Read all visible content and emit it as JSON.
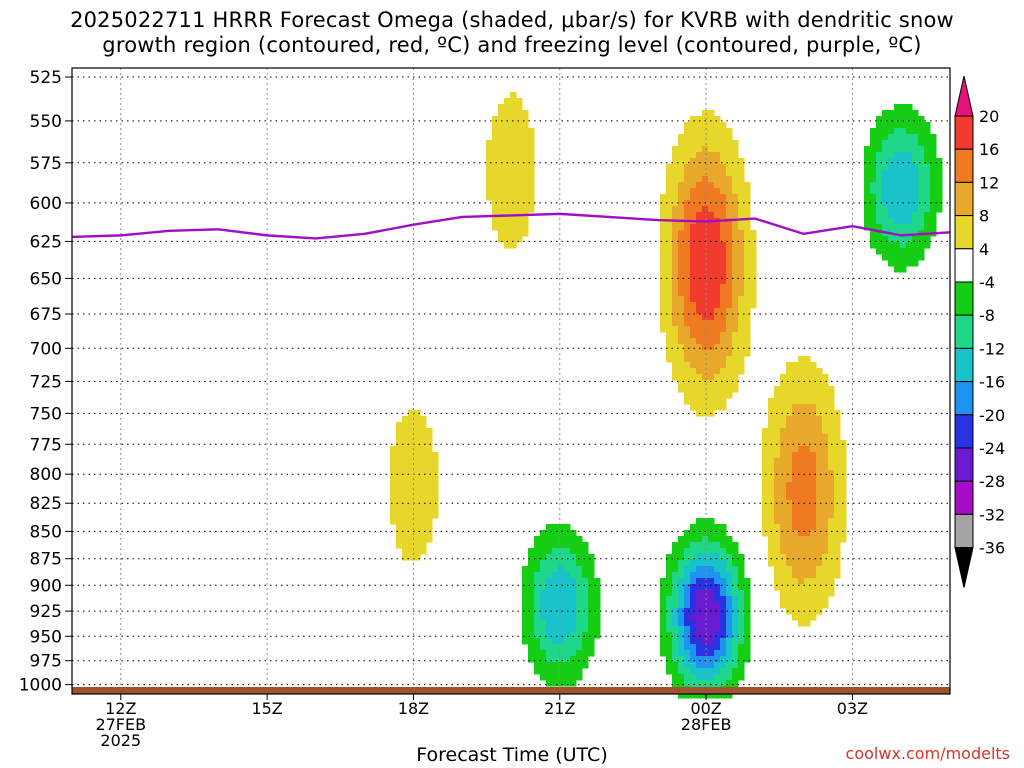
{
  "title": "2025022711 HRRR Forecast Omega (shaded, μbar/s) for KVRB with dendritic snow\ngrowth region (contoured, red, ºC) and freezing level (contoured, purple, ºC)",
  "credit": "coolwx.com/modelts",
  "chart_data": {
    "type": "heatmap",
    "title": "2025022711 HRRR Forecast Omega (shaded, μbar/s) for KVRB with dendritic snow growth region (contoured, red, ºC) and freezing level (contoured, purple, ºC)",
    "xlabel": "Forecast Time (UTC)",
    "ylabel": "",
    "x_ticks": [
      {
        "hour": 0,
        "lines": [
          "12Z",
          "27FEB",
          "2025"
        ]
      },
      {
        "hour": 3,
        "lines": [
          "15Z"
        ]
      },
      {
        "hour": 6,
        "lines": [
          "18Z"
        ]
      },
      {
        "hour": 9,
        "lines": [
          "21Z"
        ]
      },
      {
        "hour": 12,
        "lines": [
          "00Z",
          "28FEB"
        ]
      },
      {
        "hour": 15,
        "lines": [
          "03Z"
        ]
      }
    ],
    "xlim": [
      -1,
      17
    ],
    "y_ticks": [
      525,
      550,
      575,
      600,
      625,
      650,
      675,
      700,
      725,
      750,
      775,
      800,
      825,
      850,
      875,
      900,
      925,
      950,
      975,
      1000
    ],
    "ylim": [
      520,
      1010
    ],
    "y_scale": "log-pressure (inverted)",
    "grid": true,
    "colorbar": {
      "labels": [
        "20",
        "16",
        "12",
        "8",
        "4",
        "-4",
        "-8",
        "-12",
        "-16",
        "-20",
        "-24",
        "-28",
        "-32",
        "-36"
      ],
      "levels": [
        {
          "min": 20,
          "color": "#e8127c"
        },
        {
          "min": 16,
          "max": 20,
          "color": "#f23a2e"
        },
        {
          "min": 12,
          "max": 16,
          "color": "#ef7a22"
        },
        {
          "min": 8,
          "max": 12,
          "color": "#e7a82c"
        },
        {
          "min": 4,
          "max": 8,
          "color": "#e6d72a"
        },
        {
          "min": -4,
          "max": 4,
          "color": "#ffffff"
        },
        {
          "min": -8,
          "max": -4,
          "color": "#14cd14"
        },
        {
          "min": -12,
          "max": -8,
          "color": "#1ed78a"
        },
        {
          "min": -16,
          "max": -12,
          "color": "#18c4c9"
        },
        {
          "min": -20,
          "max": -16,
          "color": "#1f93f2"
        },
        {
          "min": -24,
          "max": -20,
          "color": "#2a33e2"
        },
        {
          "min": -28,
          "max": -24,
          "color": "#6a1ad0"
        },
        {
          "min": -32,
          "max": -28,
          "color": "#a50cc8"
        },
        {
          "min": -36,
          "max": -32,
          "color": "#a5a5a5"
        },
        {
          "max": -36,
          "color": "#000000"
        }
      ]
    },
    "freezing_level": {
      "color": "#a10fc4",
      "points": [
        [
          -1,
          622
        ],
        [
          0,
          621
        ],
        [
          1,
          618
        ],
        [
          2,
          617
        ],
        [
          3,
          621
        ],
        [
          4,
          623
        ],
        [
          5,
          620
        ],
        [
          6,
          614
        ],
        [
          7,
          609
        ],
        [
          8,
          608
        ],
        [
          9,
          607
        ],
        [
          10,
          609
        ],
        [
          11,
          611
        ],
        [
          12,
          612
        ],
        [
          13,
          610
        ],
        [
          14,
          620
        ],
        [
          15,
          615
        ],
        [
          16,
          621
        ],
        [
          17,
          619
        ]
      ]
    },
    "omega_regions": [
      {
        "hour_center": 12,
        "pressure_center": 640,
        "peak": 20,
        "sign": "up"
      },
      {
        "hour_center": 12,
        "pressure_center": 930,
        "peak": -28,
        "sign": "down"
      },
      {
        "hour_center": 9,
        "pressure_center": 920,
        "peak": -16,
        "sign": "down"
      },
      {
        "hour_center": 14,
        "pressure_center": 815,
        "peak": 14,
        "sign": "up"
      },
      {
        "hour_center": 16,
        "pressure_center": 590,
        "peak": -16,
        "sign": "down"
      },
      {
        "hour_center": 6,
        "pressure_center": 810,
        "peak": 6,
        "sign": "up"
      },
      {
        "hour_center": 8,
        "pressure_center": 580,
        "peak": 6,
        "sign": "up"
      }
    ],
    "surface_color": "#a0522d"
  }
}
